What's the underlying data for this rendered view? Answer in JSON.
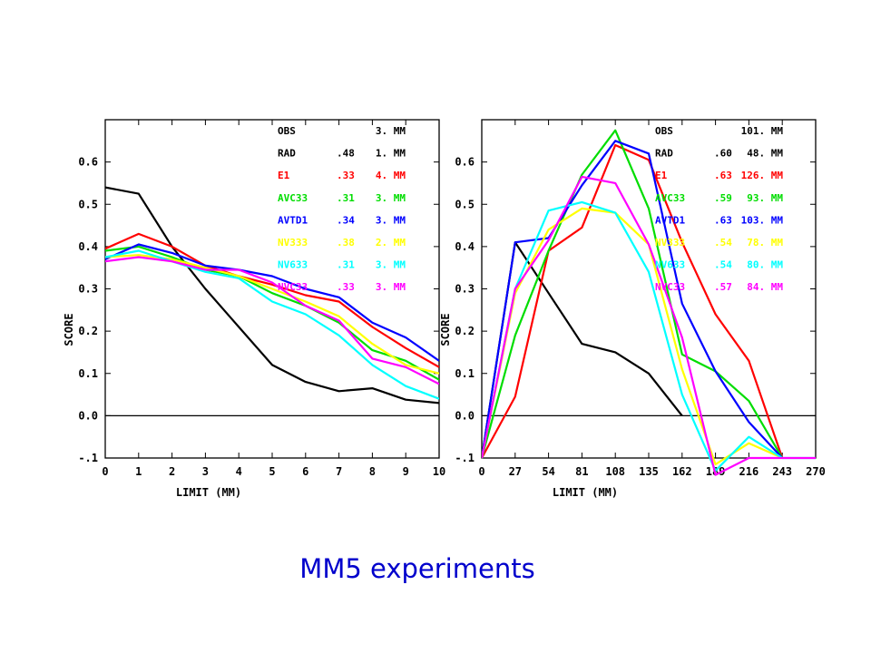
{
  "caption": "MM5 experiments",
  "chart_data": [
    {
      "type": "line",
      "xlabel": "LIMIT (MM)",
      "ylabel": "SCORE",
      "xlim": [
        0,
        10
      ],
      "ylim": [
        -0.1,
        0.7
      ],
      "x_ticks": [
        "0",
        "1",
        "2",
        "3",
        "4",
        "5",
        "6",
        "7",
        "8",
        "9",
        "10"
      ],
      "y_ticks": [
        "0.6",
        "0.5",
        "0.4",
        "0.3",
        "0.2",
        "0.1",
        "0.0",
        "-.1"
      ],
      "y_tick_values": [
        0.6,
        0.5,
        0.4,
        0.3,
        0.2,
        0.1,
        0.0,
        -0.1
      ],
      "zero_line": true,
      "x": [
        0,
        1,
        2,
        3,
        4,
        5,
        6,
        7,
        8,
        9,
        10
      ],
      "legend": [
        {
          "name": "OBS",
          "score": "",
          "amount": "3. MM",
          "color": "#000000"
        },
        {
          "name": "RAD",
          "score": ".48",
          "amount": "1. MM",
          "color": "#000000"
        },
        {
          "name": "E1",
          "score": ".33",
          "amount": "4. MM",
          "color": "#ff0000"
        },
        {
          "name": "AVC33",
          "score": ".31",
          "amount": "3. MM",
          "color": "#00dd00"
        },
        {
          "name": "AVTD1",
          "score": ".34",
          "amount": "3. MM",
          "color": "#0000ff"
        },
        {
          "name": "NV333",
          "score": ".38",
          "amount": "2. MM",
          "color": "#ffff00"
        },
        {
          "name": "NV633",
          "score": ".31",
          "amount": "3. MM",
          "color": "#00ffff"
        },
        {
          "name": "NVC33",
          "score": ".33",
          "amount": "3. MM",
          "color": "#ff00ff"
        }
      ],
      "series": [
        {
          "color": "#000000",
          "values": [
            0.54,
            0.525,
            0.4,
            0.3,
            0.21,
            0.12,
            0.08,
            0.058,
            0.065,
            0.038,
            0.03
          ]
        },
        {
          "color": "#ff0000",
          "values": [
            0.395,
            0.43,
            0.4,
            0.355,
            0.33,
            0.31,
            0.285,
            0.27,
            0.21,
            0.16,
            0.115
          ]
        },
        {
          "color": "#00dd00",
          "values": [
            0.39,
            0.4,
            0.375,
            0.345,
            0.33,
            0.29,
            0.26,
            0.22,
            0.155,
            0.13,
            0.085
          ]
        },
        {
          "color": "#0000ff",
          "values": [
            0.37,
            0.405,
            0.385,
            0.355,
            0.345,
            0.33,
            0.3,
            0.28,
            0.22,
            0.185,
            0.13
          ]
        },
        {
          "color": "#ffff00",
          "values": [
            0.375,
            0.38,
            0.37,
            0.35,
            0.33,
            0.3,
            0.27,
            0.235,
            0.17,
            0.12,
            0.1
          ]
        },
        {
          "color": "#00ffff",
          "values": [
            0.375,
            0.39,
            0.365,
            0.34,
            0.325,
            0.27,
            0.24,
            0.19,
            0.12,
            0.07,
            0.04
          ]
        },
        {
          "color": "#ff00ff",
          "values": [
            0.365,
            0.375,
            0.365,
            0.345,
            0.345,
            0.315,
            0.26,
            0.225,
            0.135,
            0.115,
            0.075
          ]
        }
      ]
    },
    {
      "type": "line",
      "xlabel": "LIMIT (MM)",
      "ylabel": "SCORE",
      "xlim": [
        0,
        270
      ],
      "ylim": [
        -0.1,
        0.7
      ],
      "x_ticks": [
        "0",
        "27",
        "54",
        "81",
        "108",
        "135",
        "162",
        "189",
        "216",
        "243",
        "270"
      ],
      "y_ticks": [
        "0.6",
        "0.5",
        "0.4",
        "0.3",
        "0.2",
        "0.1",
        "0.0",
        "-.1"
      ],
      "y_tick_values": [
        0.6,
        0.5,
        0.4,
        0.3,
        0.2,
        0.1,
        0.0,
        -0.1
      ],
      "zero_line": true,
      "legend": [
        {
          "name": "OBS",
          "score": "",
          "amount": "101. MM",
          "color": "#000000"
        },
        {
          "name": "RAD",
          "score": ".60",
          "amount": "48. MM",
          "color": "#000000"
        },
        {
          "name": "E1",
          "score": ".63",
          "amount": "126. MM",
          "color": "#ff0000"
        },
        {
          "name": "AVC33",
          "score": ".59",
          "amount": "93. MM",
          "color": "#00dd00"
        },
        {
          "name": "AVTD1",
          "score": ".63",
          "amount": "103. MM",
          "color": "#0000ff"
        },
        {
          "name": "NV333",
          "score": ".54",
          "amount": "78. MM",
          "color": "#ffff00"
        },
        {
          "name": "NV633",
          "score": ".54",
          "amount": "80. MM",
          "color": "#00ffff"
        },
        {
          "name": "NVC33",
          "score": ".57",
          "amount": "84. MM",
          "color": "#ff00ff"
        }
      ],
      "series": [
        {
          "color": "#000000",
          "x": [
            0,
            27,
            54,
            81,
            108,
            135,
            162
          ],
          "values": [
            -0.1,
            0.41,
            0.29,
            0.17,
            0.15,
            0.1,
            0.0
          ]
        },
        {
          "color": "#ff0000",
          "x": [
            0,
            27,
            54,
            81,
            108,
            135,
            162,
            189,
            216,
            243
          ],
          "values": [
            -0.1,
            0.045,
            0.39,
            0.445,
            0.64,
            0.605,
            0.41,
            0.24,
            0.13,
            -0.1
          ]
        },
        {
          "color": "#00dd00",
          "x": [
            0,
            27,
            54,
            81,
            108,
            135,
            162,
            189,
            216,
            243
          ],
          "values": [
            -0.1,
            0.19,
            0.39,
            0.57,
            0.675,
            0.49,
            0.145,
            0.105,
            0.035,
            -0.1
          ]
        },
        {
          "color": "#0000ff",
          "x": [
            0,
            27,
            54,
            81,
            108,
            135,
            162,
            189,
            216,
            243
          ],
          "values": [
            -0.1,
            0.41,
            0.42,
            0.545,
            0.65,
            0.62,
            0.265,
            0.105,
            -0.015,
            -0.1
          ]
        },
        {
          "color": "#ffff00",
          "x": [
            0,
            27,
            54,
            81,
            108,
            135,
            162,
            189,
            216,
            243
          ],
          "values": [
            -0.1,
            0.29,
            0.44,
            0.49,
            0.48,
            0.405,
            0.11,
            -0.115,
            -0.065,
            -0.1
          ]
        },
        {
          "color": "#00ffff",
          "x": [
            0,
            27,
            54,
            81,
            108,
            135,
            162,
            189,
            216,
            243,
            270
          ],
          "values": [
            -0.1,
            0.3,
            0.485,
            0.505,
            0.48,
            0.34,
            0.05,
            -0.13,
            -0.05,
            -0.1,
            -0.1
          ]
        },
        {
          "color": "#ff00ff",
          "x": [
            0,
            27,
            54,
            81,
            108,
            135,
            162,
            189,
            216,
            243,
            270
          ],
          "values": [
            -0.1,
            0.3,
            0.415,
            0.565,
            0.55,
            0.405,
            0.185,
            -0.14,
            -0.1,
            -0.1,
            -0.1
          ]
        }
      ]
    }
  ]
}
